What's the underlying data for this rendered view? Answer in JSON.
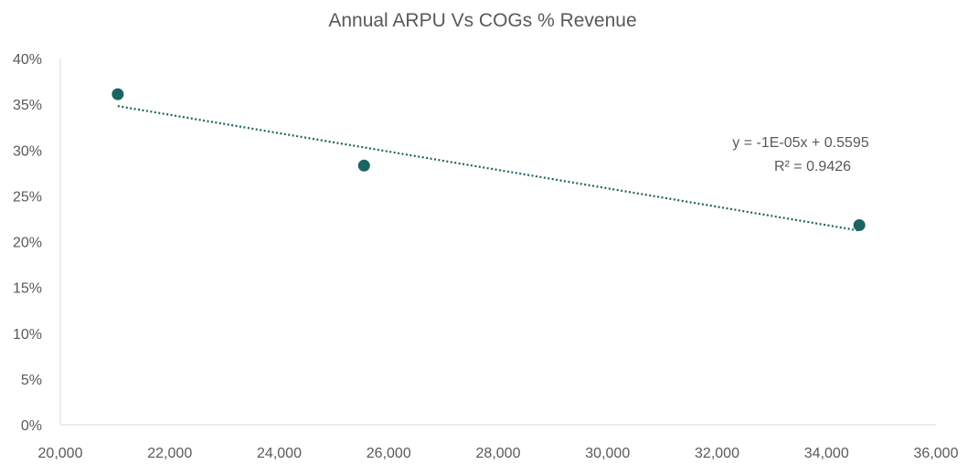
{
  "chart_data": {
    "type": "scatter",
    "title": "Annual ARPU Vs COGs % Revenue",
    "xlabel": "",
    "ylabel": "",
    "xlim": [
      20000,
      36000
    ],
    "ylim": [
      0,
      0.4
    ],
    "x_ticks": [
      20000,
      22000,
      24000,
      26000,
      28000,
      30000,
      32000,
      34000,
      36000
    ],
    "x_tick_labels": [
      "20,000",
      "22,000",
      "24,000",
      "26,000",
      "28,000",
      "30,000",
      "32,000",
      "34,000",
      "36,000"
    ],
    "y_ticks": [
      0,
      0.05,
      0.1,
      0.15,
      0.2,
      0.25,
      0.3,
      0.35,
      0.4
    ],
    "y_tick_labels": [
      "0%",
      "5%",
      "10%",
      "15%",
      "20%",
      "25%",
      "30%",
      "35%",
      "40%"
    ],
    "grid": false,
    "legend": "none",
    "series": [
      {
        "x": [
          21050,
          25550,
          34600
        ],
        "y": [
          0.361,
          0.283,
          0.218
        ],
        "color": "#1b6460"
      }
    ],
    "trendline": {
      "type": "linear",
      "style": "dotted",
      "color": "#1b6460",
      "x": [
        21050,
        34600
      ],
      "y": [
        0.348,
        0.212
      ],
      "equation_label": "y = -1E-05x + 0.5595",
      "r2_label": "R² = 0.9426"
    }
  }
}
